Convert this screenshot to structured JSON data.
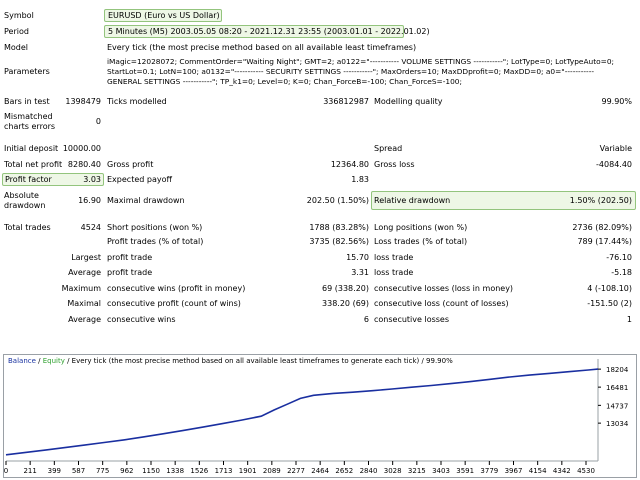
{
  "header": {
    "symbol_label": "Symbol",
    "symbol_value": "EURUSD (Euro vs US Dollar)",
    "period_label": "Period",
    "period_value": "5 Minutes (M5) 2003.05.05 08:20 - 2021.12.31 23:55 (2003.01.01 - 2022.01.02)",
    "model_label": "Model",
    "model_value": "Every tick (the most precise method based on all available least timeframes)",
    "parameters_label": "Parameters",
    "parameters_lines": [
      "iMagic=12028072; CommentOrder=\"Waiting Night\"; GMT=2; a0122=\"----------- VOLUME SETTINGS -----------\"; LotType=0; LotTypeAuto=0;",
      "StartLot=0.1; LotN=100; a0132=\"----------- SECURITY SETTINGS -----------\"; MaxOrders=10; MaxDDprofit=0; MaxDD=0; a0=\"-----------",
      "GENERAL SETTINGS -----------\"; TP_k1=0; Level=0; K=0; Chan_ForceB=-100; Chan_ForceS=-100;"
    ]
  },
  "stats": {
    "bars_label": "Bars in test",
    "bars_value": "1398479",
    "ticks_label": "Ticks modelled",
    "ticks_value": "336812987",
    "quality_label": "Modelling quality",
    "quality_value": "99.90%",
    "mismatched_label_1": "Mismatched",
    "mismatched_label_2": "charts errors",
    "mismatched_value": "0",
    "initial_label": "Initial deposit",
    "initial_value": "10000.00",
    "spread_label": "Spread",
    "spread_value": "Variable",
    "netprofit_label": "Total net profit",
    "netprofit_value": "8280.40",
    "grossprofit_label": "Gross profit",
    "grossprofit_value": "12364.80",
    "grossloss_label": "Gross loss",
    "grossloss_value": "-4084.40",
    "pf_label": "Profit factor",
    "pf_value": "3.03",
    "payoff_label": "Expected payoff",
    "payoff_value": "1.83",
    "absdd_label_1": "Absolute",
    "absdd_label_2": "drawdown",
    "absdd_value": "16.90",
    "maxdd_label": "Maximal drawdown",
    "maxdd_value": "202.50 (1.50%)",
    "reldd_label": "Relative drawdown",
    "reldd_value": "1.50% (202.50)",
    "trades_label": "Total trades",
    "trades_value": "4524",
    "short_label": "Short positions (won %)",
    "short_value": "1788 (83.28%)",
    "long_label": "Long positions (won %)",
    "long_value": "2736 (82.09%)",
    "ptrades_label": "Profit trades (% of total)",
    "ptrades_value": "3735 (82.56%)",
    "ltrades_label": "Loss trades (% of total)",
    "ltrades_value": "789 (17.44%)",
    "largest_label": "Largest",
    "largest_profit_label": "profit trade",
    "largest_profit_value": "15.70",
    "largest_loss_label": "loss trade",
    "largest_loss_value": "-76.10",
    "average_label": "Average",
    "average_profit_label": "profit trade",
    "average_profit_value": "3.31",
    "average_loss_label": "loss trade",
    "average_loss_value": "-5.18",
    "maximum_label": "Maximum",
    "max_cwins_label": "consecutive wins (profit in money)",
    "max_cwins_value": "69 (338.20)",
    "max_closses_label": "consecutive losses (loss in money)",
    "max_closses_value": "4 (-108.10)",
    "maximal_label": "Maximal",
    "maximal_cprofit_label": "consecutive profit (count of wins)",
    "maximal_cprofit_value": "338.20 (69)",
    "maximal_closs_label": "consecutive loss (count of losses)",
    "maximal_closs_value": "-151.50 (2)",
    "avg2_label": "Average",
    "avg_cwins_label": "consecutive wins",
    "avg_cwins_value": "6",
    "avg_closses_label": "consecutive losses",
    "avg_closses_value": "1"
  },
  "chart_legend": {
    "balance": "Balance",
    "sep1": " / ",
    "equity": "Equity",
    "rest": " / Every tick (the most precise method based on all available least timeframes to generate each tick) / 99.90%"
  },
  "colors": {
    "balance": "#1a2fa0",
    "equity": "#2fa02f",
    "highlight_bg": "#eef7e6",
    "highlight_border": "#93c47d"
  },
  "chart_data": {
    "type": "line",
    "title": "",
    "x_ticks": [
      "0",
      "211",
      "399",
      "587",
      "775",
      "962",
      "1150",
      "1338",
      "1526",
      "1713",
      "1901",
      "2089",
      "2277",
      "2464",
      "2652",
      "2840",
      "3028",
      "3215",
      "3403",
      "3591",
      "3779",
      "3967",
      "4154",
      "4342",
      "4530"
    ],
    "y_ticks": [
      "18204",
      "16481",
      "14737",
      "13034"
    ],
    "xlim": [
      0,
      4524
    ],
    "ylim": [
      9600,
      18600
    ],
    "series": [
      {
        "name": "Balance",
        "x": [
          0,
          150,
          300,
          450,
          600,
          750,
          900,
          1050,
          1200,
          1350,
          1500,
          1650,
          1800,
          1950,
          2050,
          2150,
          2250,
          2350,
          2500,
          2650,
          2800,
          2950,
          3100,
          3250,
          3400,
          3550,
          3700,
          3850,
          4000,
          4150,
          4300,
          4450,
          4524
        ],
        "y": [
          10000,
          10230,
          10450,
          10690,
          10930,
          11180,
          11430,
          11720,
          12010,
          12320,
          12640,
          12980,
          13320,
          13700,
          14300,
          14850,
          15400,
          15700,
          15880,
          16000,
          16140,
          16300,
          16470,
          16640,
          16820,
          17010,
          17230,
          17450,
          17630,
          17800,
          17960,
          18120,
          18204
        ]
      }
    ]
  }
}
